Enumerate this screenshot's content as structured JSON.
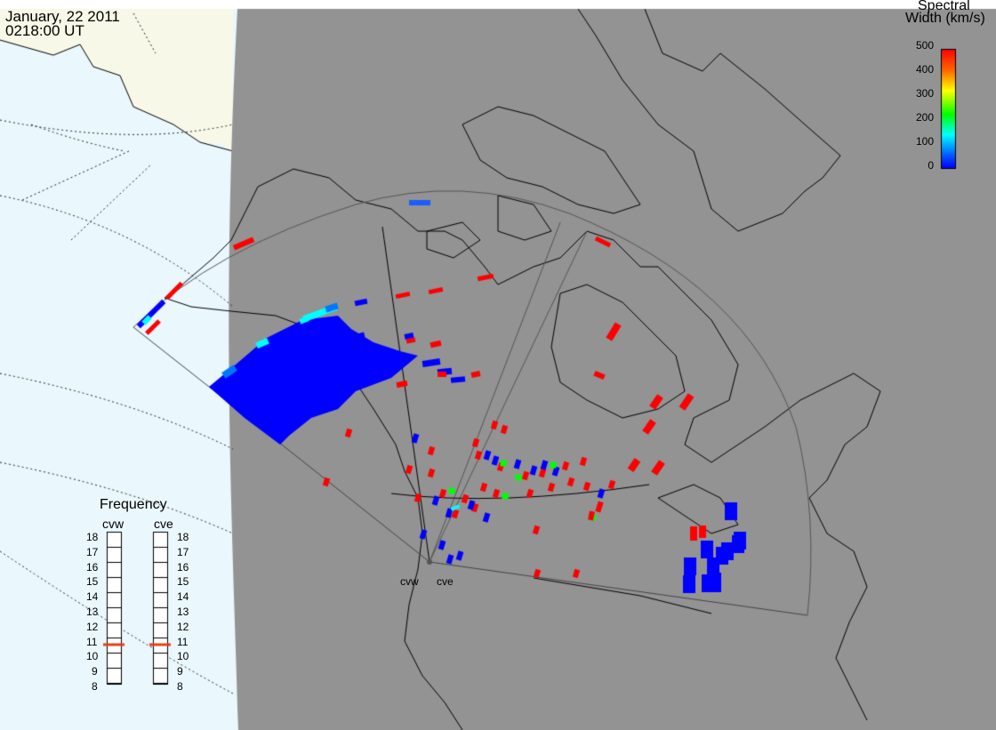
{
  "header": {
    "date": "January, 22 2011",
    "time": "0218:00 UT"
  },
  "colorbar": {
    "title_line1": "Spectral",
    "title_line2": "Width (km/s)",
    "ticks": [
      "500",
      "400",
      "300",
      "200",
      "100",
      "0"
    ],
    "colors": [
      "#ff0000",
      "#ffbb00",
      "#ffff00",
      "#00dd00",
      "#00ffff",
      "#0000ff"
    ]
  },
  "frequency_panel": {
    "title": "Frequency",
    "radars": [
      {
        "name": "cvw",
        "value": 11
      },
      {
        "name": "cve",
        "value": 11
      }
    ],
    "scale": [
      "18",
      "17",
      "16",
      "15",
      "14",
      "13",
      "12",
      "11",
      "10",
      "9",
      "8"
    ]
  },
  "radar_sites": [
    {
      "label": "cvw"
    },
    {
      "label": "cve"
    }
  ],
  "colors": {
    "night": "#939393",
    "ocean_day": "#eaf7fd",
    "land_day": "#f8f8e8",
    "high_width": "#ff0000",
    "low_width": "#0000ff",
    "mid_width": "#00ffff",
    "green": "#00ff00",
    "frequency_marker": "#e0401a"
  }
}
